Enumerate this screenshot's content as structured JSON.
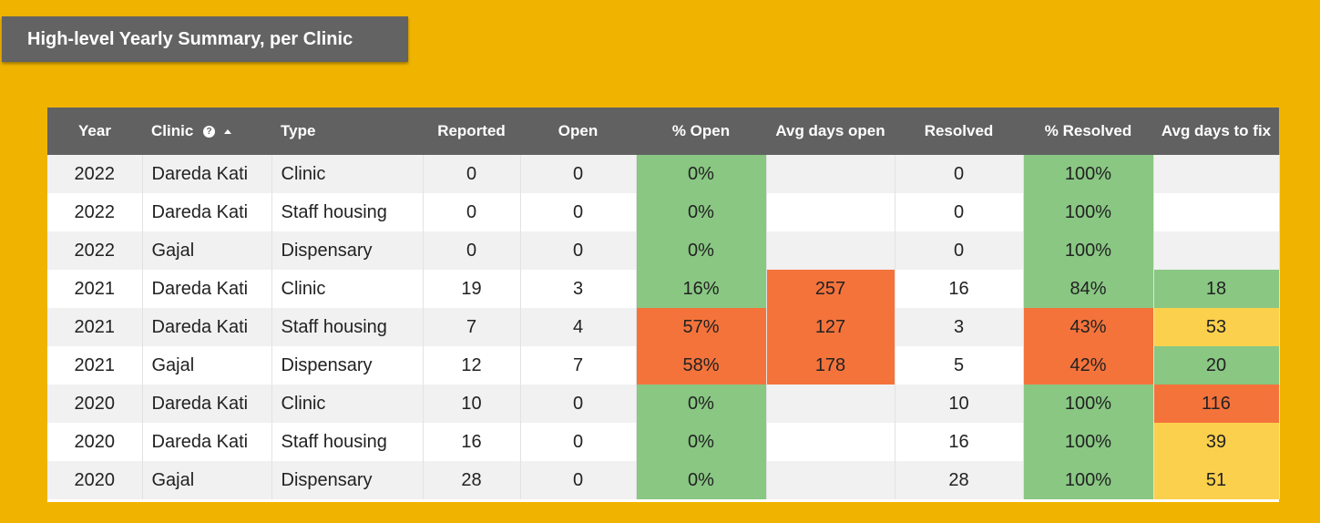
{
  "title": "High-level Yearly Summary, per Clinic",
  "colors": {
    "background": "#f0b400",
    "header": "#616161",
    "good": "#89c783",
    "bad": "#f4733b",
    "warn": "#fbd04c"
  },
  "columns": [
    {
      "label": "Year"
    },
    {
      "label": "Clinic",
      "help_icon": "help-icon",
      "sort": "ascending"
    },
    {
      "label": "Type"
    },
    {
      "label": "Reported"
    },
    {
      "label": "Open"
    },
    {
      "label": "% Open"
    },
    {
      "label": "Avg days open"
    },
    {
      "label": "Resolved"
    },
    {
      "label": "% Resolved"
    },
    {
      "label": "Avg days to fix"
    }
  ],
  "rows": [
    {
      "year": "2022",
      "clinic": "Dareda Kati",
      "type": "Clinic",
      "reported": "0",
      "open": "0",
      "pct_open": "0%",
      "avg_days_open": "",
      "resolved": "0",
      "pct_resolved": "100%",
      "avg_days_fix": ""
    },
    {
      "year": "2022",
      "clinic": "Dareda Kati",
      "type": "Staff housing",
      "reported": "0",
      "open": "0",
      "pct_open": "0%",
      "avg_days_open": "",
      "resolved": "0",
      "pct_resolved": "100%",
      "avg_days_fix": ""
    },
    {
      "year": "2022",
      "clinic": "Gajal",
      "type": "Dispensary",
      "reported": "0",
      "open": "0",
      "pct_open": "0%",
      "avg_days_open": "",
      "resolved": "0",
      "pct_resolved": "100%",
      "avg_days_fix": ""
    },
    {
      "year": "2021",
      "clinic": "Dareda Kati",
      "type": "Clinic",
      "reported": "19",
      "open": "3",
      "pct_open": "16%",
      "avg_days_open": "257",
      "resolved": "16",
      "pct_resolved": "84%",
      "avg_days_fix": "18"
    },
    {
      "year": "2021",
      "clinic": "Dareda Kati",
      "type": "Staff housing",
      "reported": "7",
      "open": "4",
      "pct_open": "57%",
      "avg_days_open": "127",
      "resolved": "3",
      "pct_resolved": "43%",
      "avg_days_fix": "53"
    },
    {
      "year": "2021",
      "clinic": "Gajal",
      "type": "Dispensary",
      "reported": "12",
      "open": "7",
      "pct_open": "58%",
      "avg_days_open": "178",
      "resolved": "5",
      "pct_resolved": "42%",
      "avg_days_fix": "20"
    },
    {
      "year": "2020",
      "clinic": "Dareda Kati",
      "type": "Clinic",
      "reported": "10",
      "open": "0",
      "pct_open": "0%",
      "avg_days_open": "",
      "resolved": "10",
      "pct_resolved": "100%",
      "avg_days_fix": "116"
    },
    {
      "year": "2020",
      "clinic": "Dareda Kati",
      "type": "Staff housing",
      "reported": "16",
      "open": "0",
      "pct_open": "0%",
      "avg_days_open": "",
      "resolved": "16",
      "pct_resolved": "100%",
      "avg_days_fix": "39"
    },
    {
      "year": "2020",
      "clinic": "Gajal",
      "type": "Dispensary",
      "reported": "28",
      "open": "0",
      "pct_open": "0%",
      "avg_days_open": "",
      "resolved": "28",
      "pct_resolved": "100%",
      "avg_days_fix": "51"
    }
  ],
  "cell_status": [
    {
      "pct_open": "good",
      "avg_days_open": "none",
      "pct_resolved": "good",
      "avg_days_fix": "none"
    },
    {
      "pct_open": "good",
      "avg_days_open": "none",
      "pct_resolved": "good",
      "avg_days_fix": "none"
    },
    {
      "pct_open": "good",
      "avg_days_open": "none",
      "pct_resolved": "good",
      "avg_days_fix": "none"
    },
    {
      "pct_open": "good",
      "avg_days_open": "bad",
      "pct_resolved": "good",
      "avg_days_fix": "good"
    },
    {
      "pct_open": "bad",
      "avg_days_open": "bad",
      "pct_resolved": "bad",
      "avg_days_fix": "warn"
    },
    {
      "pct_open": "bad",
      "avg_days_open": "bad",
      "pct_resolved": "bad",
      "avg_days_fix": "good"
    },
    {
      "pct_open": "good",
      "avg_days_open": "none",
      "pct_resolved": "good",
      "avg_days_fix": "bad"
    },
    {
      "pct_open": "good",
      "avg_days_open": "none",
      "pct_resolved": "good",
      "avg_days_fix": "warn"
    },
    {
      "pct_open": "good",
      "avg_days_open": "none",
      "pct_resolved": "good",
      "avg_days_fix": "warn"
    }
  ]
}
